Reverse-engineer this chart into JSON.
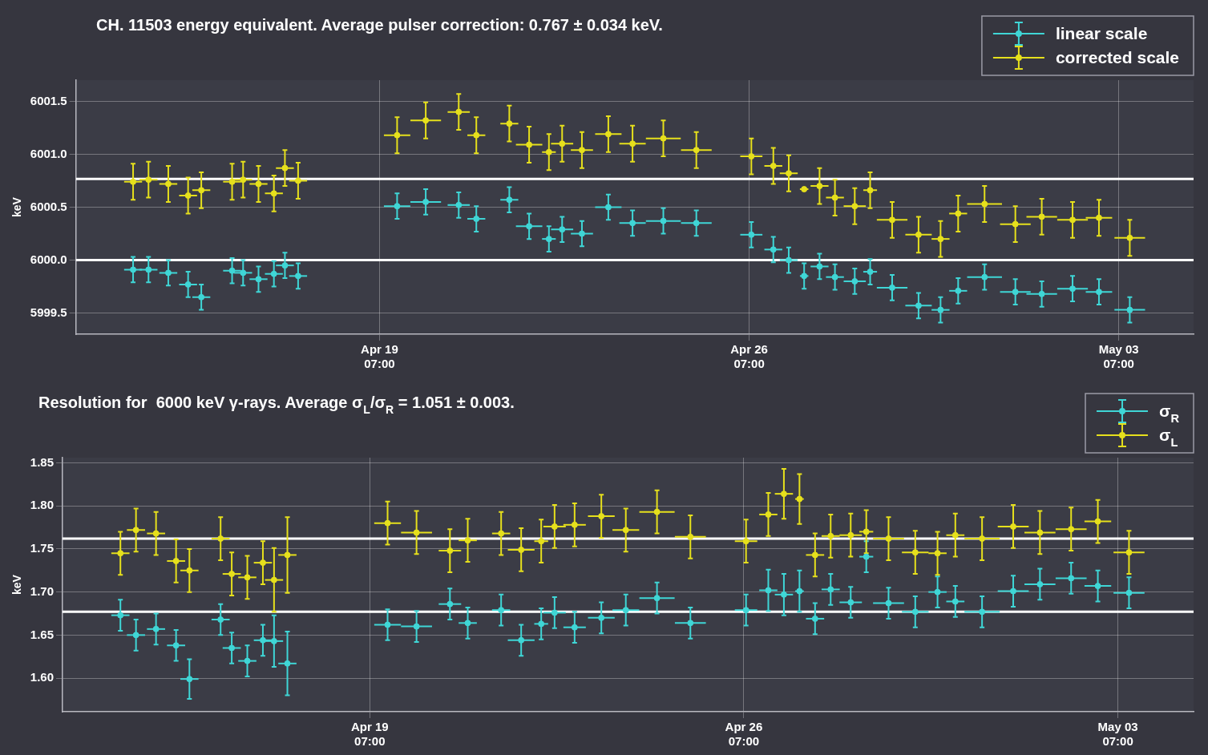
{
  "chart_data": [
    {
      "type": "scatter",
      "title": "CH. 11503 energy equivalent. Average pulser correction: 0.767 ± 0.034 keV.",
      "ylabel": "keV",
      "x": [
        "--04-14T15:00",
        "--04-14T22:00",
        "--04-15T07:00",
        "--04-15T16:00",
        "--04-15T22:00",
        "--04-16T12:00",
        "--04-16T17:00",
        "--04-17T00:00",
        "--04-17T07:00",
        "--04-17T12:00",
        "--04-17T18:00",
        "--04-19T15:00",
        "--04-20T04:00",
        "--04-20T19:00",
        "--04-21T03:00",
        "--04-21T18:00",
        "--04-22T03:00",
        "--04-22T12:00",
        "--04-22T18:00",
        "--04-23T03:00",
        "--04-23T15:00",
        "--04-24T02:00",
        "--04-24T16:00",
        "--04-25T07:00",
        "--04-26T08:00",
        "--04-26T18:00",
        "--04-27T01:00",
        "--04-27T08:00",
        "--04-27T15:00",
        "--04-27T22:00",
        "--04-28T07:00",
        "--04-28T14:00",
        "--04-29T00:00",
        "--04-29T12:00",
        "--04-29T22:00",
        "--04-30T06:00",
        "--04-30T18:00",
        "--05-01T08:00",
        "--05-01T20:00",
        "--05-02T10:00",
        "--05-02T22:00",
        "--05-03T12:00"
      ],
      "xlim": [
        "--04-13T13:00",
        "--05-04T17:00"
      ],
      "xticks": [
        {
          "value": "--04-19T07:00",
          "label": "Apr 19\n07:00"
        },
        {
          "value": "--04-26T07:00",
          "label": "Apr 26\n07:00"
        },
        {
          "value": "--05-03T07:00",
          "label": "May 03\n07:00"
        }
      ],
      "ylim": [
        5999.3,
        6001.7
      ],
      "yticks": [
        {
          "value": 5999.5,
          "label": "5999.5"
        },
        {
          "value": 6000,
          "label": "6000.0"
        },
        {
          "value": 6000.5,
          "label": "6000.5"
        },
        {
          "value": 6001,
          "label": "6001.0"
        },
        {
          "value": 6001.5,
          "label": "6001.5"
        }
      ],
      "grid": true,
      "legend": "top right",
      "marker": "circle",
      "ref_lines": [
        {
          "axis": "y",
          "value": 6000.767,
          "color": "#ffffff"
        },
        {
          "axis": "y",
          "value": 6000,
          "color": "#ffffff"
        }
      ],
      "series": [
        {
          "name": "linear scale",
          "color": "#3fd6d6",
          "values": [
            5999.91,
            5999.91,
            5999.88,
            5999.77,
            5999.65,
            5999.9,
            5999.88,
            5999.82,
            5999.87,
            5999.95,
            5999.85,
            6000.51,
            6000.55,
            6000.52,
            6000.39,
            6000.57,
            6000.32,
            6000.2,
            6000.29,
            6000.25,
            6000.5,
            6000.35,
            6000.37,
            6000.35,
            6000.24,
            6000.1,
            6000.0,
            5999.85,
            5999.94,
            5999.84,
            5999.8,
            5999.89,
            5999.74,
            5999.57,
            5999.53,
            5999.71,
            5999.84,
            5999.7,
            5999.68,
            5999.73,
            5999.7,
            5999.53
          ],
          "errors": [
            0.12,
            0.12,
            0.12,
            0.12,
            0.12,
            0.12,
            0.12,
            0.12,
            0.12,
            0.12,
            0.12,
            0.12,
            0.12,
            0.12,
            0.12,
            0.12,
            0.12,
            0.12,
            0.12,
            0.12,
            0.12,
            0.12,
            0.12,
            0.12,
            0.12,
            0.12,
            0.12,
            0.12,
            0.12,
            0.12,
            0.12,
            0.12,
            0.12,
            0.12,
            0.12,
            0.12,
            0.12,
            0.12,
            0.12,
            0.12,
            0.12,
            0.12
          ],
          "xerrors": [
            0.17,
            0.17,
            0.17,
            0.17,
            0.17,
            0.17,
            0.17,
            0.17,
            0.17,
            0.17,
            0.17,
            0.25,
            0.29,
            0.21,
            0.17,
            0.17,
            0.25,
            0.13,
            0.21,
            0.21,
            0.25,
            0.25,
            0.33,
            0.29,
            0.21,
            0.17,
            0.17,
            0.08,
            0.17,
            0.17,
            0.21,
            0.13,
            0.29,
            0.25,
            0.17,
            0.17,
            0.33,
            0.29,
            0.29,
            0.29,
            0.25,
            0.29
          ]
        },
        {
          "name": "corrected scale",
          "color": "#e6e01c",
          "values": [
            6000.74,
            6000.76,
            6000.72,
            6000.61,
            6000.66,
            6000.74,
            6000.76,
            6000.72,
            6000.63,
            6000.87,
            6000.75,
            6001.18,
            6001.32,
            6001.4,
            6001.18,
            6001.29,
            6001.09,
            6001.02,
            6001.1,
            6001.04,
            6001.19,
            6001.1,
            6001.15,
            6001.04,
            6000.98,
            6000.89,
            6000.82,
            6000.67,
            6000.7,
            6000.59,
            6000.51,
            6000.66,
            6000.38,
            6000.24,
            6000.2,
            6000.44,
            6000.53,
            6000.34,
            6000.41,
            6000.38,
            6000.4,
            6000.21
          ],
          "errors": [
            0.17,
            0.17,
            0.17,
            0.17,
            0.17,
            0.17,
            0.17,
            0.17,
            0.17,
            0.17,
            0.17,
            0.17,
            0.17,
            0.17,
            0.17,
            0.17,
            0.17,
            0.17,
            0.17,
            0.17,
            0.17,
            0.17,
            0.17,
            0.17,
            0.17,
            0.17,
            0.17,
            0.02,
            0.17,
            0.17,
            0.17,
            0.17,
            0.17,
            0.17,
            0.17,
            0.17,
            0.17,
            0.17,
            0.17,
            0.17,
            0.17,
            0.17
          ],
          "xerrors": [
            0.17,
            0.17,
            0.17,
            0.17,
            0.17,
            0.17,
            0.17,
            0.17,
            0.17,
            0.17,
            0.17,
            0.25,
            0.29,
            0.21,
            0.17,
            0.17,
            0.25,
            0.13,
            0.21,
            0.21,
            0.25,
            0.25,
            0.33,
            0.29,
            0.21,
            0.17,
            0.17,
            0.08,
            0.17,
            0.17,
            0.21,
            0.13,
            0.29,
            0.25,
            0.17,
            0.17,
            0.33,
            0.29,
            0.29,
            0.29,
            0.25,
            0.29
          ]
        }
      ]
    },
    {
      "type": "scatter",
      "title": "Resolution for  6000 keV γ-rays. Average σ$_{L}$/σ$_{R}$ = 1.051 ± 0.003.",
      "ylabel": "keV",
      "x": [
        "--04-14T15:00",
        "--04-14T22:00",
        "--04-15T07:00",
        "--04-15T16:00",
        "--04-15T22:00",
        "--04-16T12:00",
        "--04-16T17:00",
        "--04-17T00:00",
        "--04-17T07:00",
        "--04-17T12:00",
        "--04-17T18:00",
        "--04-19T15:00",
        "--04-20T04:00",
        "--04-20T19:00",
        "--04-21T03:00",
        "--04-21T18:00",
        "--04-22T03:00",
        "--04-22T12:00",
        "--04-22T18:00",
        "--04-23T03:00",
        "--04-23T15:00",
        "--04-24T02:00",
        "--04-24T16:00",
        "--04-25T07:00",
        "--04-26T08:00",
        "--04-26T18:00",
        "--04-27T01:00",
        "--04-27T08:00",
        "--04-27T15:00",
        "--04-27T22:00",
        "--04-28T07:00",
        "--04-28T14:00",
        "--04-29T00:00",
        "--04-29T12:00",
        "--04-29T22:00",
        "--04-30T06:00",
        "--04-30T18:00",
        "--05-01T08:00",
        "--05-01T20:00",
        "--05-02T10:00",
        "--05-02T22:00",
        "--05-03T12:00"
      ],
      "xlim": [
        "--04-13T13:00",
        "--05-04T17:00"
      ],
      "xticks": [
        {
          "value": "--04-19T07:00",
          "label": "Apr 19\n07:00"
        },
        {
          "value": "--04-26T07:00",
          "label": "Apr 26\n07:00"
        },
        {
          "value": "--05-03T07:00",
          "label": "May 03\n07:00"
        }
      ],
      "ylim": [
        1.561,
        1.856
      ],
      "yticks": [
        {
          "value": 1.6,
          "label": "1.60"
        },
        1.65,
        {
          "value": 1.7,
          "label": "1.70"
        },
        1.75,
        {
          "value": 1.8,
          "label": "1.80"
        },
        1.85
      ],
      "grid": true,
      "legend": "top right",
      "marker": "circle",
      "ref_lines": [
        {
          "axis": "y",
          "value": 1.762,
          "color": "#ffffff"
        },
        {
          "axis": "y",
          "value": 1.677,
          "color": "#ffffff"
        }
      ],
      "series": [
        {
          "name": "σ$_{R}$",
          "color": "#3fd6d6",
          "values": [
            1.673,
            1.65,
            1.657,
            1.638,
            1.599,
            1.668,
            1.635,
            1.62,
            1.644,
            1.643,
            1.617,
            1.662,
            1.66,
            1.686,
            1.664,
            1.679,
            1.644,
            1.663,
            1.676,
            1.659,
            1.67,
            1.679,
            1.693,
            1.664,
            1.679,
            1.702,
            1.697,
            1.701,
            1.669,
            1.703,
            1.688,
            1.741,
            1.687,
            1.677,
            1.7,
            1.689,
            1.677,
            1.701,
            1.709,
            1.716,
            1.707,
            1.699
          ],
          "errors": [
            0.018,
            0.018,
            0.018,
            0.018,
            0.023,
            0.018,
            0.018,
            0.018,
            0.018,
            0.03,
            0.037,
            0.018,
            0.018,
            0.018,
            0.018,
            0.018,
            0.018,
            0.018,
            0.018,
            0.018,
            0.018,
            0.018,
            0.018,
            0.018,
            0.018,
            0.024,
            0.024,
            0.024,
            0.018,
            0.018,
            0.018,
            0.018,
            0.018,
            0.018,
            0.018,
            0.018,
            0.018,
            0.018,
            0.018,
            0.018,
            0.018,
            0.018
          ],
          "xerrors": [
            0.17,
            0.17,
            0.17,
            0.17,
            0.17,
            0.17,
            0.17,
            0.17,
            0.17,
            0.17,
            0.17,
            0.25,
            0.29,
            0.21,
            0.17,
            0.17,
            0.25,
            0.13,
            0.21,
            0.21,
            0.25,
            0.25,
            0.33,
            0.29,
            0.21,
            0.17,
            0.17,
            0.08,
            0.17,
            0.17,
            0.21,
            0.13,
            0.29,
            0.25,
            0.17,
            0.17,
            0.33,
            0.29,
            0.29,
            0.29,
            0.25,
            0.29
          ]
        },
        {
          "name": "σ$_{L}$",
          "color": "#e6e01c",
          "values": [
            1.745,
            1.772,
            1.768,
            1.736,
            1.725,
            1.762,
            1.721,
            1.717,
            1.734,
            1.714,
            1.743,
            1.78,
            1.769,
            1.748,
            1.76,
            1.768,
            1.749,
            1.759,
            1.776,
            1.778,
            1.788,
            1.772,
            1.793,
            1.764,
            1.759,
            1.79,
            1.814,
            1.808,
            1.743,
            1.765,
            1.766,
            1.77,
            1.762,
            1.746,
            1.745,
            1.766,
            1.762,
            1.776,
            1.769,
            1.773,
            1.782,
            1.746
          ],
          "errors": [
            0.025,
            0.025,
            0.025,
            0.025,
            0.025,
            0.025,
            0.025,
            0.025,
            0.025,
            0.037,
            0.044,
            0.025,
            0.025,
            0.025,
            0.025,
            0.025,
            0.025,
            0.025,
            0.025,
            0.025,
            0.025,
            0.025,
            0.025,
            0.025,
            0.025,
            0.025,
            0.029,
            0.029,
            0.025,
            0.025,
            0.025,
            0.025,
            0.025,
            0.025,
            0.025,
            0.025,
            0.025,
            0.025,
            0.025,
            0.025,
            0.025,
            0.025
          ],
          "xerrors": [
            0.17,
            0.17,
            0.17,
            0.17,
            0.17,
            0.17,
            0.17,
            0.17,
            0.17,
            0.17,
            0.17,
            0.25,
            0.29,
            0.21,
            0.17,
            0.17,
            0.25,
            0.13,
            0.21,
            0.21,
            0.25,
            0.25,
            0.33,
            0.29,
            0.21,
            0.17,
            0.17,
            0.08,
            0.17,
            0.17,
            0.21,
            0.13,
            0.29,
            0.25,
            0.17,
            0.17,
            0.33,
            0.29,
            0.29,
            0.29,
            0.25,
            0.29
          ]
        }
      ]
    }
  ]
}
